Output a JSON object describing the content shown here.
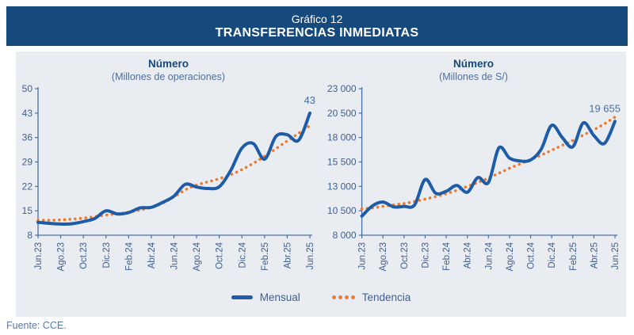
{
  "header": {
    "pretitle": "Gráfico 12",
    "title": "TRANSFERENCIAS INMEDIATAS"
  },
  "footer": {
    "source": "Fuente: CCE."
  },
  "legend": [
    {
      "label": "Mensual",
      "style": "solid-line",
      "color": "#1F5CA8"
    },
    {
      "label": "Tendencia",
      "style": "dotted-line",
      "color": "#EF7A2B"
    }
  ],
  "colors": {
    "header_bg": "#174A7C",
    "panel_bg": "#E9EDF2",
    "mensual_line": "#1F5CA8",
    "tendencia_dots": "#EF7A2B",
    "axis": "#4D6F9E",
    "tick_text": "#3D5F93",
    "annotation_text": "#4D6F9E",
    "chart_title_text": "#17497D"
  },
  "chart_data": [
    {
      "type": "line",
      "title": "Número",
      "subtitle": "(Millones de operaciones)",
      "grid": false,
      "legend_position": "bottom-center",
      "x": [
        "Jun.23",
        "Jul.23",
        "Ago.23",
        "Sep.23",
        "Oct.23",
        "Nov.23",
        "Dic.23",
        "Ene.24",
        "Feb.24",
        "Mar.24",
        "Abr.24",
        "May.24",
        "Jun.24",
        "Jul.24",
        "Ago.24",
        "Sep.24",
        "Oct.24",
        "Nov.24",
        "Dic.24",
        "Ene.25",
        "Feb.25",
        "Mar.25",
        "Abr.25",
        "May.25",
        "Jun.25"
      ],
      "x_tick_labels": [
        "Jun.23",
        "Ago.23",
        "Oct.23",
        "Dic.23",
        "Feb.24",
        "Abr.24",
        "Jun.24",
        "Ago.24",
        "Oct.24",
        "Dic.24",
        "Feb.25",
        "Abr.25",
        "Jun.25"
      ],
      "ylim": [
        8,
        50
      ],
      "yticks": [
        8,
        15,
        22,
        29,
        36,
        43,
        50
      ],
      "ytick_labels": [
        "8",
        "15",
        "22",
        "29",
        "36",
        "43",
        "50"
      ],
      "end_label": "43",
      "series": [
        {
          "name": "Mensual",
          "values": [
            11.7,
            11.4,
            11.2,
            11.3,
            11.9,
            12.8,
            15.0,
            14.1,
            14.5,
            15.8,
            16.0,
            17.4,
            19.2,
            22.6,
            21.8,
            21.4,
            21.9,
            26.5,
            33.0,
            34.3,
            29.8,
            36.3,
            36.8,
            35.2,
            43.0
          ]
        },
        {
          "name": "Tendencia",
          "values": [
            12.3,
            12.3,
            12.4,
            12.6,
            12.9,
            13.3,
            13.8,
            14.1,
            14.6,
            15.2,
            16.0,
            17.2,
            19.0,
            21.0,
            22.4,
            23.3,
            24.2,
            25.3,
            26.8,
            28.6,
            30.6,
            32.8,
            35.0,
            37.2,
            39.4
          ]
        }
      ]
    },
    {
      "type": "line",
      "title": "Número",
      "subtitle": "(Millones de S/)",
      "grid": false,
      "legend_position": "bottom-center",
      "x": [
        "Jun.23",
        "Jul.23",
        "Ago.23",
        "Sep.23",
        "Oct.23",
        "Nov.23",
        "Dic.23",
        "Ene.24",
        "Feb.24",
        "Mar.24",
        "Abr.24",
        "May.24",
        "Jun.24",
        "Jul.24",
        "Ago.24",
        "Sep.24",
        "Oct.24",
        "Nov.24",
        "Dic.24",
        "Ene.25",
        "Feb.25",
        "Mar.25",
        "Abr.25",
        "May.25",
        "Jun.25"
      ],
      "x_tick_labels": [
        "Jun.23",
        "Ago.23",
        "Oct.23",
        "Dic.23",
        "Feb.24",
        "Abr.24",
        "Jun.24",
        "Ago.24",
        "Oct.24",
        "Dic.24",
        "Feb.25",
        "Abr.25",
        "Jun.25"
      ],
      "ylim": [
        8000,
        23000
      ],
      "yticks": [
        8000,
        10500,
        13000,
        15500,
        18000,
        20500,
        23000
      ],
      "ytick_labels": [
        "8 000",
        "10 500",
        "13 000",
        "15 500",
        "18 000",
        "20 500",
        "23 000"
      ],
      "end_label": "19 655",
      "series": [
        {
          "name": "Mensual",
          "values": [
            9950,
            11000,
            11400,
            10900,
            10950,
            11100,
            13700,
            12300,
            12500,
            13100,
            12400,
            13900,
            13400,
            16950,
            15900,
            15600,
            15700,
            16800,
            19250,
            18000,
            17050,
            19500,
            18200,
            17400,
            19655
          ]
        },
        {
          "name": "Tendencia",
          "values": [
            10700,
            10800,
            10950,
            11100,
            11250,
            11450,
            11700,
            11950,
            12250,
            12600,
            13000,
            13400,
            13850,
            14350,
            14850,
            15300,
            15750,
            16200,
            16700,
            17200,
            17700,
            18250,
            18800,
            19400,
            20100
          ]
        }
      ]
    }
  ]
}
